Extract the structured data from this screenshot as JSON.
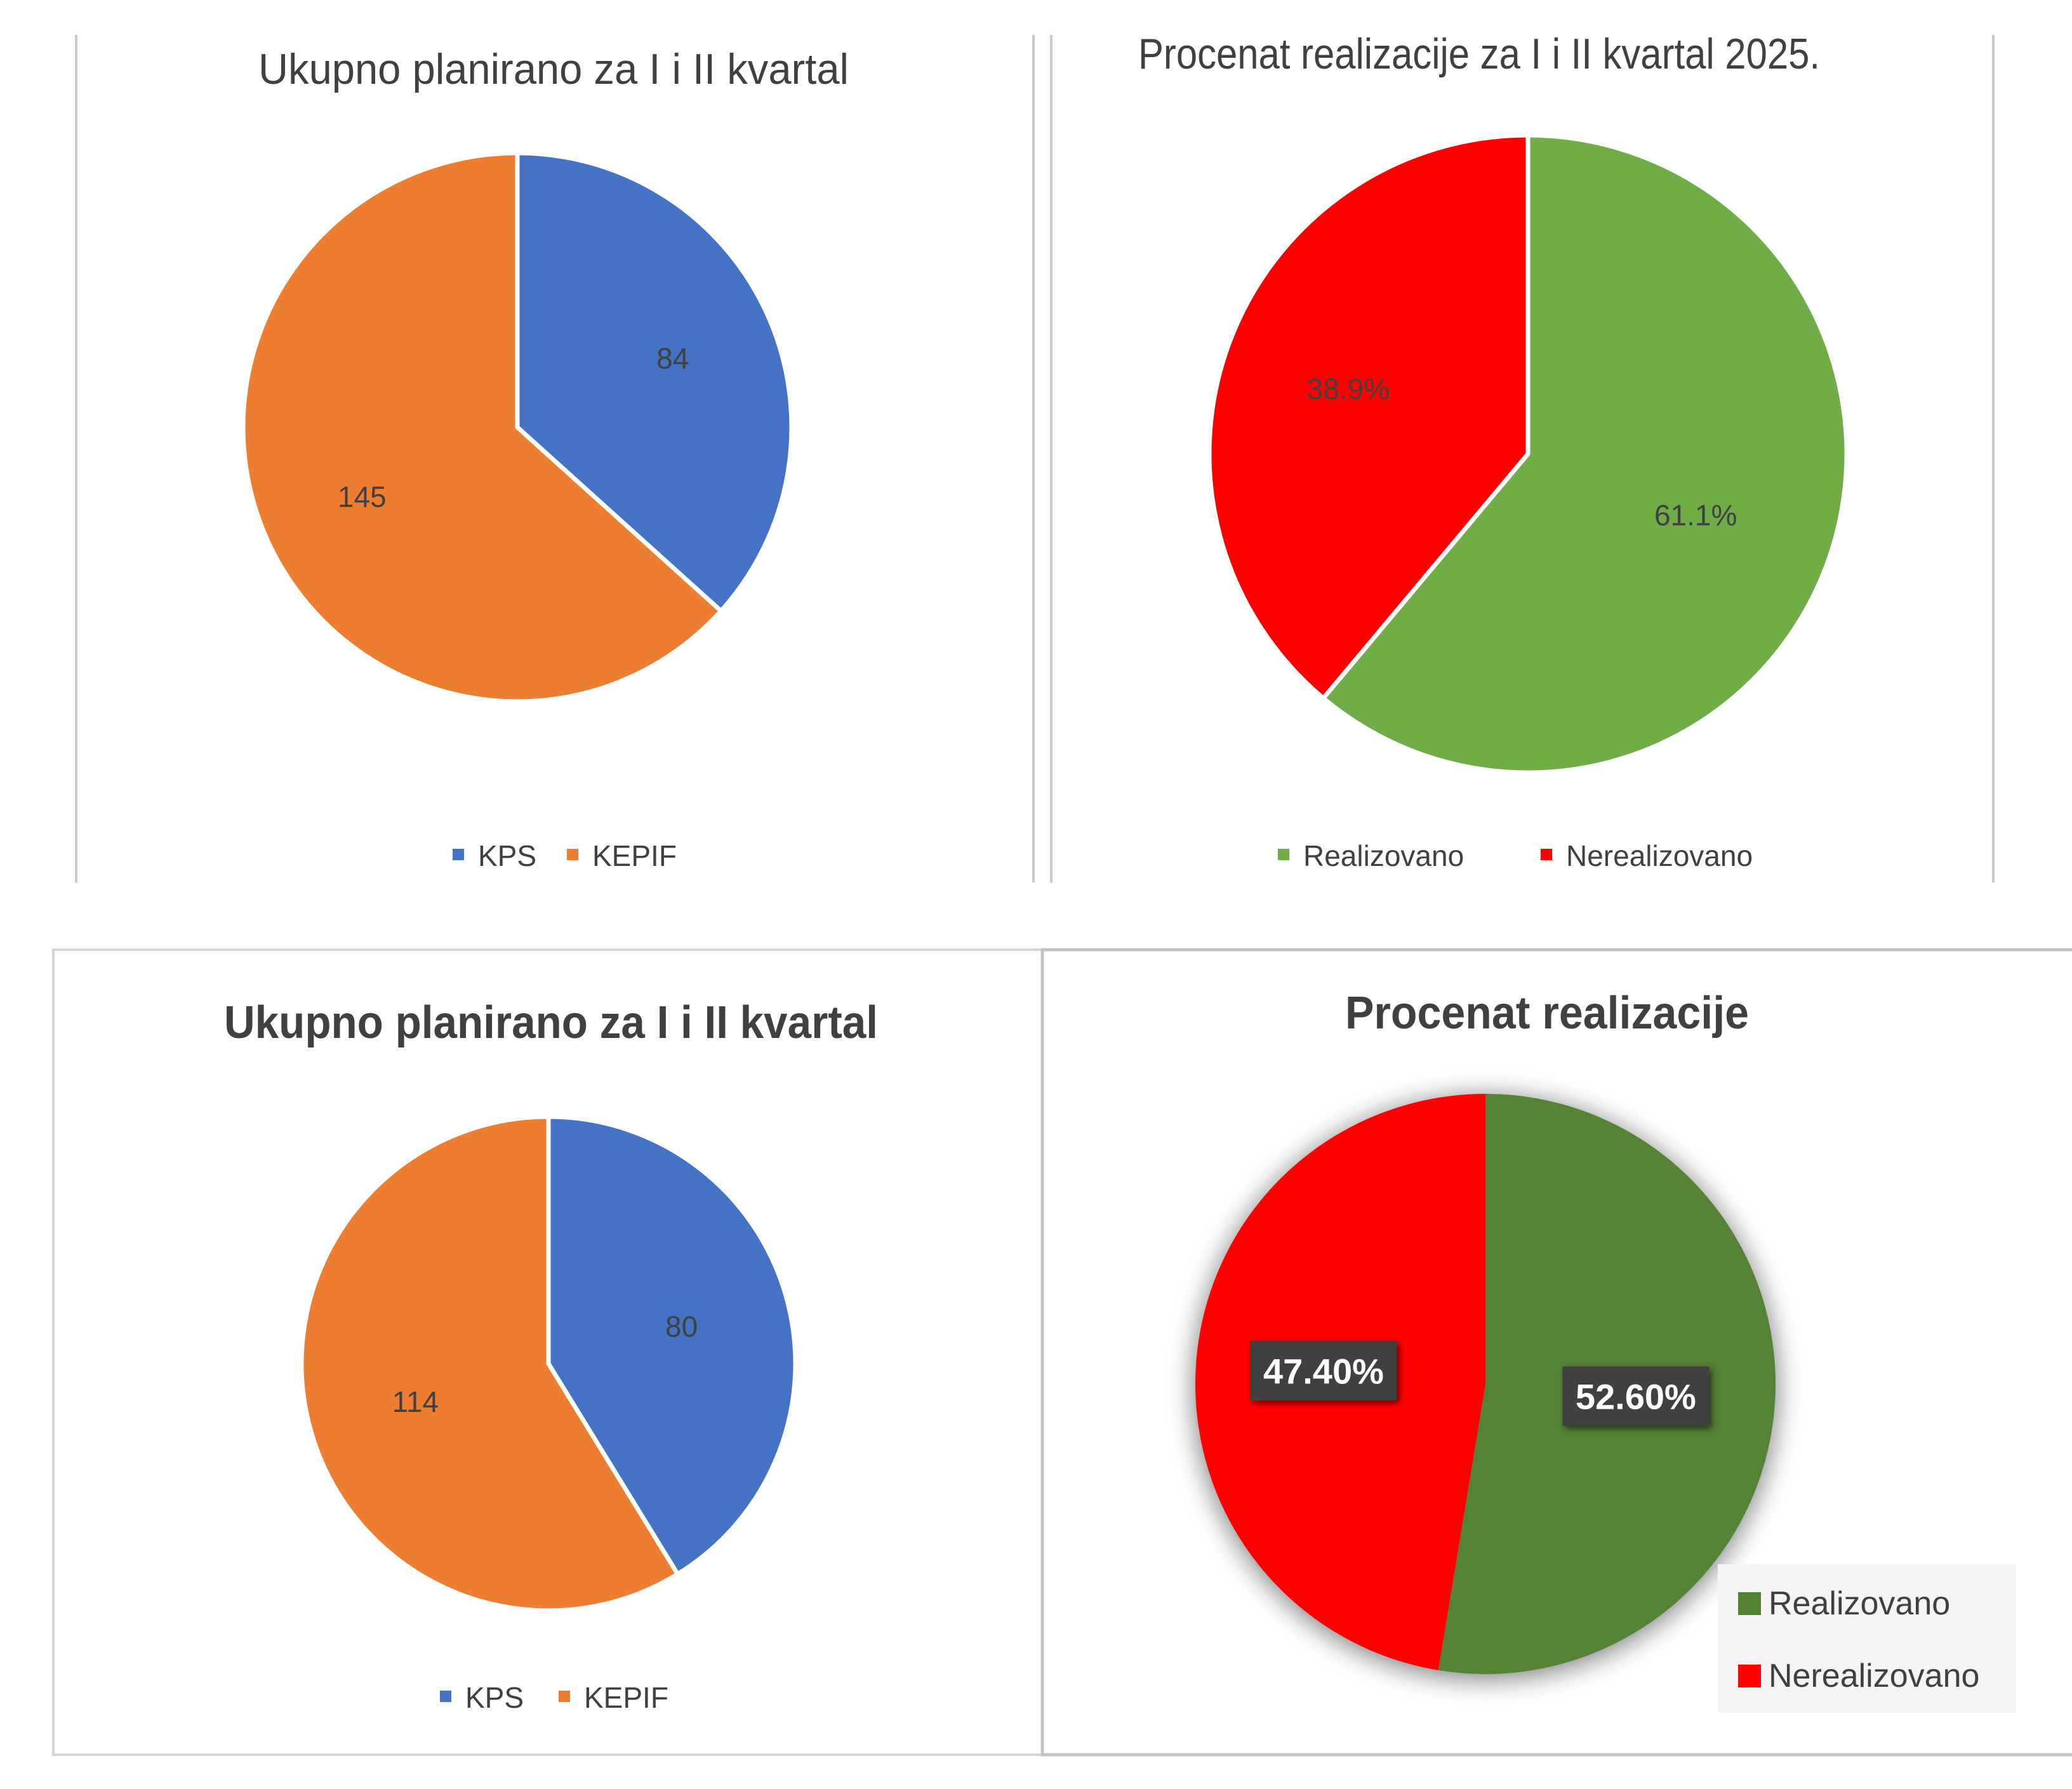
{
  "chart_data": [
    {
      "type": "pie",
      "title": "Ukupno planirano za I i II kvartal",
      "categories": [
        "KPS",
        "KEPIF"
      ],
      "values": [
        84,
        145
      ],
      "data_labels": [
        "84",
        "145"
      ],
      "colors": [
        "#4472C4",
        "#ED7D31"
      ],
      "legend": "bottom"
    },
    {
      "type": "pie",
      "title": "Procenat realizacije za I i II kvartal 2025.",
      "categories": [
        "Realizovano",
        "Nerealizovano"
      ],
      "values": [
        61.1,
        38.9
      ],
      "data_labels": [
        "61.1%",
        "38.9%"
      ],
      "colors": [
        "#70AD47",
        "#FF0000"
      ],
      "legend": "bottom"
    },
    {
      "type": "pie",
      "title": "Ukupno planirano za I i II kvartal",
      "categories": [
        "KPS",
        "KEPIF"
      ],
      "values": [
        80,
        114
      ],
      "data_labels": [
        "80",
        "114"
      ],
      "colors": [
        "#4472C4",
        "#ED7D31"
      ],
      "legend": "bottom"
    },
    {
      "type": "pie",
      "title": "Procenat realizacije",
      "categories": [
        "Realizovano",
        "Nerealizovano"
      ],
      "values": [
        52.6,
        47.4
      ],
      "data_labels": [
        "52.60%",
        "47.40%"
      ],
      "colors": [
        "#548235",
        "#FF0000"
      ],
      "legend": "right"
    }
  ]
}
